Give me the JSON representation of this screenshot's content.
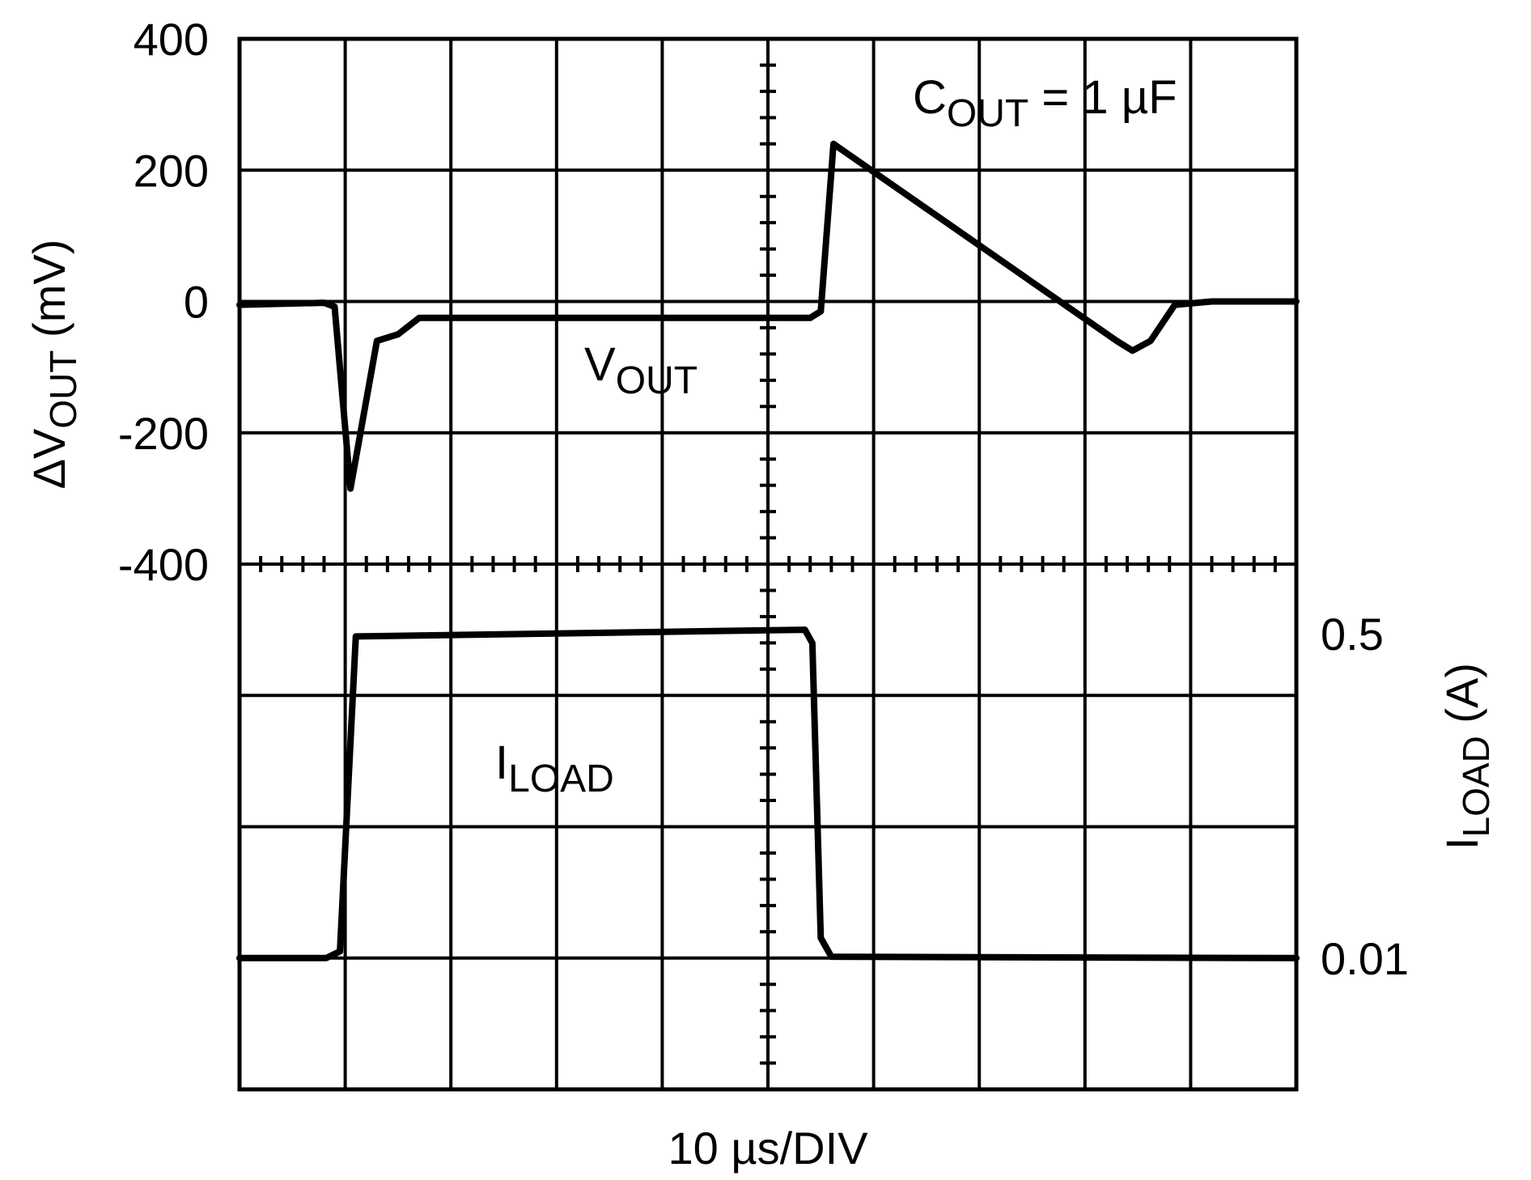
{
  "chart_data": {
    "type": "line",
    "xlabel": "10 µs/DIV",
    "x_divisions": 10,
    "y_divisions": 8,
    "grid": true,
    "annotation": {
      "main": "C",
      "sub": "OUT",
      "rest": " = 1 µF"
    },
    "left_axis": {
      "label_prefix": "ΔV",
      "label_sub": "OUT",
      "label_suffix": " (mV)",
      "ticks": [
        "400",
        "200",
        "0",
        "-200",
        "-400"
      ],
      "ylim": [
        -400,
        400
      ]
    },
    "right_axis": {
      "label_prefix": "I",
      "label_sub": "LOAD",
      "label_suffix": " (A)",
      "ticks": [
        "0.5",
        "0.01"
      ]
    },
    "series": [
      {
        "name_main": "V",
        "name_sub": "OUT",
        "x_unit": "div",
        "y_unit": "mV",
        "points": [
          [
            0.0,
            -5
          ],
          [
            0.8,
            -2
          ],
          [
            0.9,
            -8
          ],
          [
            1.05,
            -285
          ],
          [
            1.3,
            -60
          ],
          [
            1.5,
            -50
          ],
          [
            1.7,
            -25
          ],
          [
            5.4,
            -25
          ],
          [
            5.5,
            -15
          ],
          [
            5.62,
            240
          ],
          [
            8.3,
            -60
          ],
          [
            8.45,
            -75
          ],
          [
            8.62,
            -60
          ],
          [
            8.85,
            -5
          ],
          [
            9.2,
            0
          ],
          [
            10.0,
            0
          ]
        ]
      },
      {
        "name_main": "I",
        "name_sub": "LOAD",
        "x_unit": "div",
        "y_unit": "A",
        "points": [
          [
            0.0,
            0.01
          ],
          [
            0.82,
            0.01
          ],
          [
            0.95,
            0.02
          ],
          [
            1.1,
            0.49
          ],
          [
            5.35,
            0.5
          ],
          [
            5.42,
            0.48
          ],
          [
            5.5,
            0.04
          ],
          [
            5.6,
            0.012
          ],
          [
            10.0,
            0.01
          ]
        ]
      }
    ]
  }
}
